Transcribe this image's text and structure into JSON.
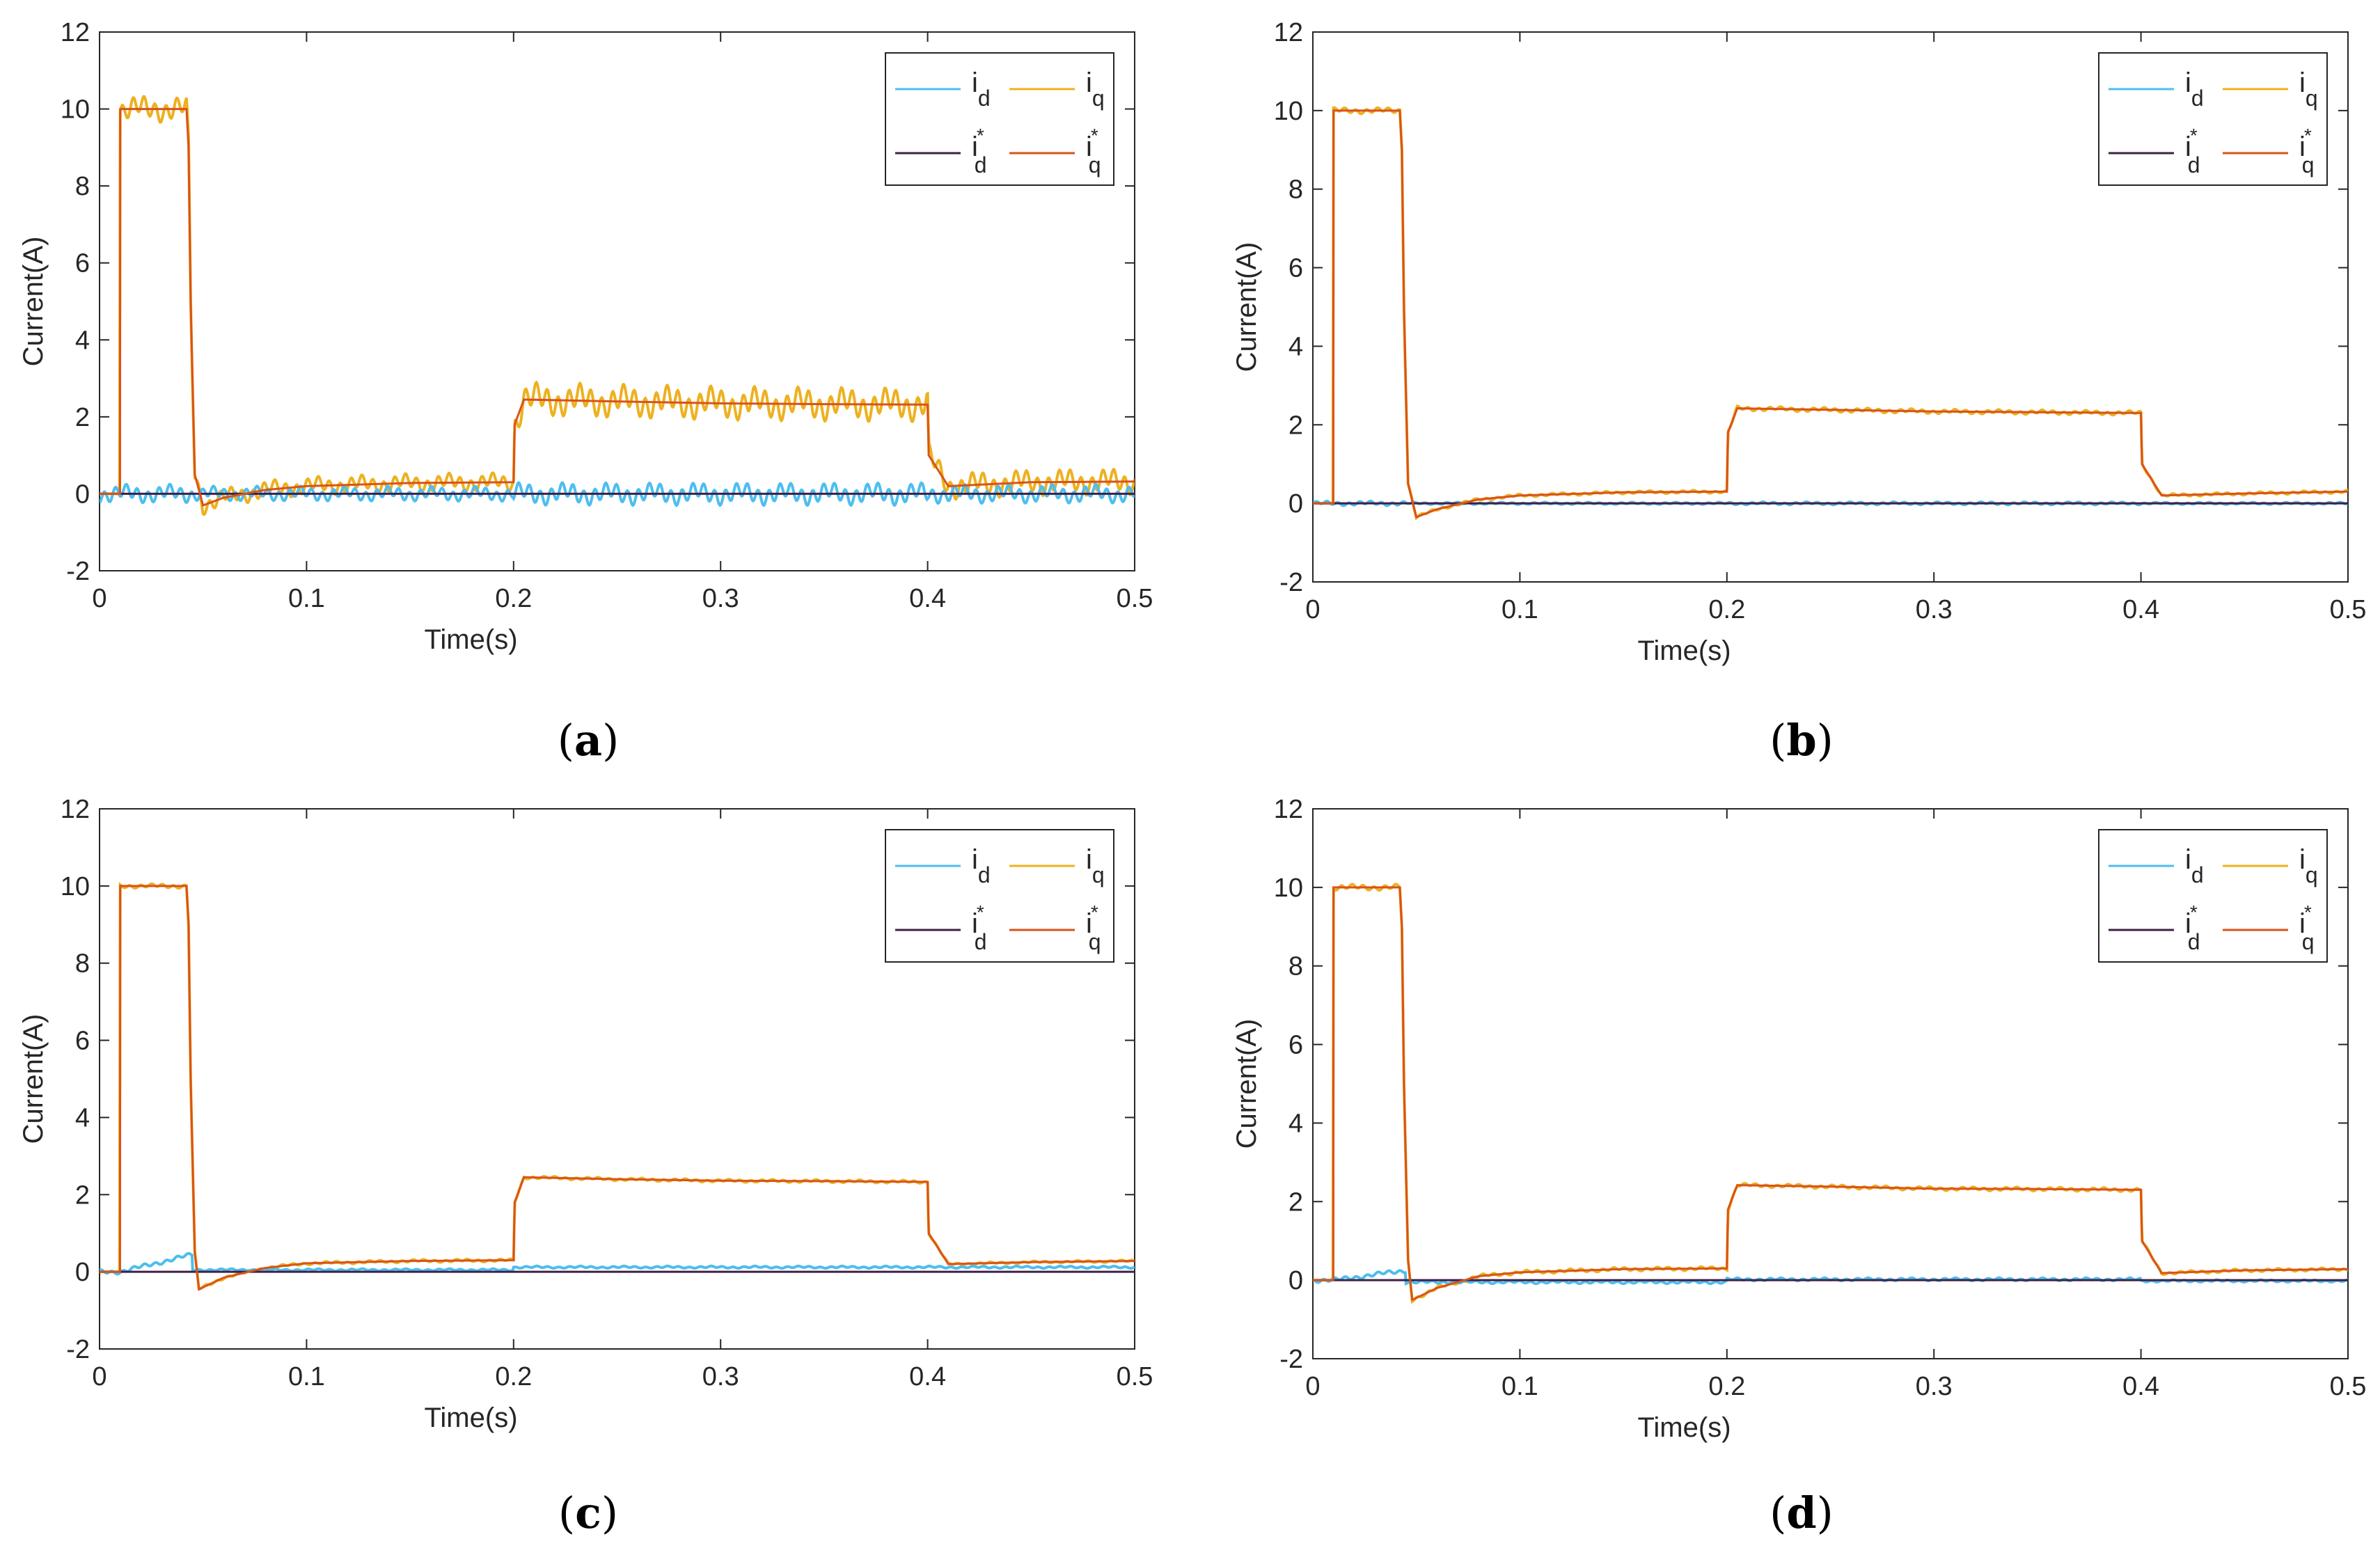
{
  "chart_data": [
    {
      "id": "a",
      "type": "line",
      "caption": "a",
      "xlabel": "Time(s)",
      "ylabel": "Current(A)",
      "xlim": [
        0,
        0.5
      ],
      "ylim": [
        -2,
        12
      ],
      "xticks": [
        "0",
        "0.1",
        "0.2",
        "0.3",
        "0.4",
        "0.5"
      ],
      "yticks": [
        "-2",
        "0",
        "2",
        "4",
        "6",
        "8",
        "10",
        "12"
      ],
      "xtick_values": [
        0,
        0.1,
        0.2,
        0.3,
        0.4,
        0.5
      ],
      "ytick_values": [
        -2,
        0,
        2,
        4,
        6,
        8,
        10,
        12
      ],
      "grid": false,
      "legend_position": "top-right",
      "legend": [
        {
          "base": "i",
          "sub": "d",
          "sup": "",
          "color": "#4DBEEE"
        },
        {
          "base": "i",
          "sub": "q",
          "sup": "",
          "color": "#EDB120"
        },
        {
          "base": "i",
          "sub": "d",
          "sup": "*",
          "color": "#3F1F46"
        },
        {
          "base": "i",
          "sub": "q",
          "sup": "*",
          "color": "#D95319"
        }
      ],
      "iq_ref": [
        [
          0,
          0
        ],
        [
          0.0099,
          0
        ],
        [
          0.01,
          10
        ],
        [
          0.042,
          10
        ],
        [
          0.043,
          9
        ],
        [
          0.044,
          5
        ],
        [
          0.046,
          0.5
        ],
        [
          0.05,
          -0.3
        ],
        [
          0.06,
          -0.1
        ],
        [
          0.08,
          0.1
        ],
        [
          0.1,
          0.2
        ],
        [
          0.15,
          0.28
        ],
        [
          0.2,
          0.3
        ],
        [
          0.2005,
          1.8
        ],
        [
          0.205,
          2.45
        ],
        [
          0.25,
          2.4
        ],
        [
          0.3,
          2.35
        ],
        [
          0.35,
          2.33
        ],
        [
          0.4,
          2.32
        ],
        [
          0.4005,
          1.0
        ],
        [
          0.41,
          0.2
        ],
        [
          0.45,
          0.3
        ],
        [
          0.5,
          0.32
        ]
      ],
      "id_ref": [
        [
          0,
          0
        ],
        [
          0.5,
          0
        ]
      ],
      "iq_noise": [
        0.35,
        0.25,
        0.45,
        0.35
      ],
      "id_noise": [
        0.25,
        0.2,
        0.3,
        0.25
      ],
      "id_offset": [
        0,
        0,
        0,
        0
      ]
    },
    {
      "id": "b",
      "type": "line",
      "caption": "b",
      "xlabel": "Time(s)",
      "ylabel": "Current(A)",
      "xlim": [
        0,
        0.5
      ],
      "ylim": [
        -2,
        12
      ],
      "xticks": [
        "0",
        "0.1",
        "0.2",
        "0.3",
        "0.4",
        "0.5"
      ],
      "yticks": [
        "-2",
        "0",
        "2",
        "4",
        "6",
        "8",
        "10",
        "12"
      ],
      "xtick_values": [
        0,
        0.1,
        0.2,
        0.3,
        0.4,
        0.5
      ],
      "ytick_values": [
        -2,
        0,
        2,
        4,
        6,
        8,
        10,
        12
      ],
      "grid": false,
      "legend_position": "top-right",
      "legend": [
        {
          "base": "i",
          "sub": "d",
          "sup": "",
          "color": "#4DBEEE"
        },
        {
          "base": "i",
          "sub": "q",
          "sup": "",
          "color": "#EDB120"
        },
        {
          "base": "i",
          "sub": "d",
          "sup": "*",
          "color": "#3F1F46"
        },
        {
          "base": "i",
          "sub": "q",
          "sup": "*",
          "color": "#D95319"
        }
      ],
      "iq_ref": [
        [
          0,
          0
        ],
        [
          0.0099,
          0
        ],
        [
          0.01,
          10
        ],
        [
          0.042,
          10
        ],
        [
          0.043,
          9
        ],
        [
          0.044,
          5
        ],
        [
          0.046,
          0.5
        ],
        [
          0.05,
          -0.35
        ],
        [
          0.06,
          -0.15
        ],
        [
          0.08,
          0.1
        ],
        [
          0.1,
          0.2
        ],
        [
          0.15,
          0.28
        ],
        [
          0.2,
          0.3
        ],
        [
          0.2005,
          1.8
        ],
        [
          0.205,
          2.42
        ],
        [
          0.25,
          2.38
        ],
        [
          0.3,
          2.34
        ],
        [
          0.35,
          2.32
        ],
        [
          0.4,
          2.3
        ],
        [
          0.4005,
          1.0
        ],
        [
          0.41,
          0.2
        ],
        [
          0.45,
          0.25
        ],
        [
          0.5,
          0.3
        ]
      ],
      "id_ref": [
        [
          0,
          0
        ],
        [
          0.5,
          0
        ]
      ],
      "iq_noise": [
        0.08,
        0.04,
        0.06,
        0.04
      ],
      "id_noise": [
        0.06,
        0.03,
        0.04,
        0.03
      ],
      "id_offset": [
        0,
        0,
        0,
        0
      ]
    },
    {
      "id": "c",
      "type": "line",
      "caption": "c",
      "xlabel": "Time(s)",
      "ylabel": "Current(A)",
      "xlim": [
        0,
        0.5
      ],
      "ylim": [
        -2,
        12
      ],
      "xticks": [
        "0",
        "0.1",
        "0.2",
        "0.3",
        "0.4",
        "0.5"
      ],
      "yticks": [
        "-2",
        "0",
        "2",
        "4",
        "6",
        "8",
        "10",
        "12"
      ],
      "xtick_values": [
        0,
        0.1,
        0.2,
        0.3,
        0.4,
        0.5
      ],
      "ytick_values": [
        -2,
        0,
        2,
        4,
        6,
        8,
        10,
        12
      ],
      "grid": false,
      "legend_position": "top-right",
      "legend": [
        {
          "base": "i",
          "sub": "d",
          "sup": "",
          "color": "#4DBEEE"
        },
        {
          "base": "i",
          "sub": "q",
          "sup": "",
          "color": "#EDB120"
        },
        {
          "base": "i",
          "sub": "d",
          "sup": "*",
          "color": "#3F1F46"
        },
        {
          "base": "i",
          "sub": "q",
          "sup": "*",
          "color": "#D95319"
        }
      ],
      "iq_ref": [
        [
          0,
          0
        ],
        [
          0.0099,
          0
        ],
        [
          0.01,
          10
        ],
        [
          0.042,
          10
        ],
        [
          0.043,
          9
        ],
        [
          0.044,
          5
        ],
        [
          0.046,
          0.5
        ],
        [
          0.048,
          -0.45
        ],
        [
          0.06,
          -0.15
        ],
        [
          0.08,
          0.1
        ],
        [
          0.1,
          0.22
        ],
        [
          0.15,
          0.28
        ],
        [
          0.2,
          0.3
        ],
        [
          0.2005,
          1.8
        ],
        [
          0.205,
          2.45
        ],
        [
          0.25,
          2.4
        ],
        [
          0.3,
          2.36
        ],
        [
          0.35,
          2.35
        ],
        [
          0.4,
          2.33
        ],
        [
          0.4005,
          1.0
        ],
        [
          0.41,
          0.2
        ],
        [
          0.45,
          0.25
        ],
        [
          0.5,
          0.28
        ]
      ],
      "id_ref": [
        [
          0,
          0
        ],
        [
          0.5,
          0
        ]
      ],
      "iq_noise": [
        0.06,
        0.04,
        0.04,
        0.03
      ],
      "id_noise": [
        0.06,
        0.03,
        0.03,
        0.03
      ],
      "id_offset": [
        0.45,
        0.05,
        0.12,
        0.12
      ]
    },
    {
      "id": "d",
      "type": "line",
      "caption": "d",
      "xlabel": "Time(s)",
      "ylabel": "Current(A)",
      "xlim": [
        0,
        0.5
      ],
      "ylim": [
        -2,
        12
      ],
      "xticks": [
        "0",
        "0.1",
        "0.2",
        "0.3",
        "0.4",
        "0.5"
      ],
      "yticks": [
        "-2",
        "0",
        "2",
        "4",
        "6",
        "8",
        "10",
        "12"
      ],
      "xtick_values": [
        0,
        0.1,
        0.2,
        0.3,
        0.4,
        0.5
      ],
      "ytick_values": [
        -2,
        0,
        2,
        4,
        6,
        8,
        10,
        12
      ],
      "grid": false,
      "legend_position": "top-right",
      "legend": [
        {
          "base": "i",
          "sub": "d",
          "sup": "",
          "color": "#4DBEEE"
        },
        {
          "base": "i",
          "sub": "q",
          "sup": "",
          "color": "#EDB120"
        },
        {
          "base": "i",
          "sub": "d",
          "sup": "*",
          "color": "#3F1F46"
        },
        {
          "base": "i",
          "sub": "q",
          "sup": "*",
          "color": "#D95319"
        }
      ],
      "iq_ref": [
        [
          0,
          0
        ],
        [
          0.0099,
          0
        ],
        [
          0.01,
          10
        ],
        [
          0.042,
          10
        ],
        [
          0.043,
          9
        ],
        [
          0.044,
          5
        ],
        [
          0.046,
          0.5
        ],
        [
          0.048,
          -0.5
        ],
        [
          0.06,
          -0.2
        ],
        [
          0.08,
          0.1
        ],
        [
          0.1,
          0.2
        ],
        [
          0.15,
          0.28
        ],
        [
          0.2,
          0.3
        ],
        [
          0.2005,
          1.8
        ],
        [
          0.205,
          2.42
        ],
        [
          0.25,
          2.38
        ],
        [
          0.3,
          2.33
        ],
        [
          0.35,
          2.32
        ],
        [
          0.4,
          2.3
        ],
        [
          0.4005,
          1.0
        ],
        [
          0.41,
          0.18
        ],
        [
          0.45,
          0.25
        ],
        [
          0.5,
          0.28
        ]
      ],
      "id_ref": [
        [
          0,
          0
        ],
        [
          0.5,
          0
        ]
      ],
      "iq_noise": [
        0.08,
        0.05,
        0.05,
        0.04
      ],
      "id_noise": [
        0.06,
        0.04,
        0.04,
        0.03
      ],
      "id_offset": [
        0.25,
        -0.05,
        0.02,
        -0.02
      ]
    }
  ]
}
